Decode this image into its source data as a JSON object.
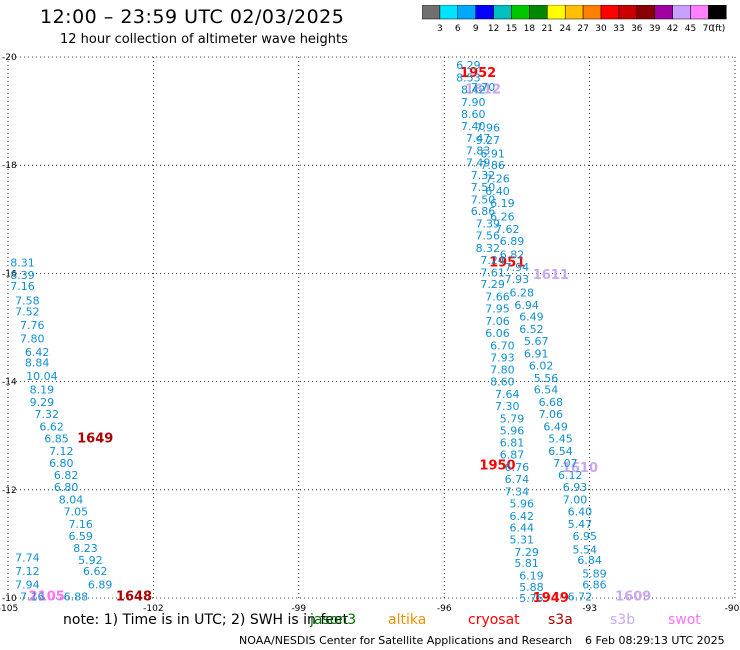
{
  "title": "12:00 – 23:59 UTC 02/03/2025",
  "subtitle": "12 hour collection of altimeter wave heights",
  "colorbar": {
    "unit": "(ft)",
    "labels": [
      "3",
      "6",
      "9",
      "12",
      "15",
      "18",
      "21",
      "24",
      "27",
      "30",
      "33",
      "36",
      "39",
      "42",
      "45",
      "70"
    ],
    "colors": [
      "#707070",
      "#00e5ff",
      "#00a8ff",
      "#0000ff",
      "#00c0c0",
      "#00c800",
      "#008800",
      "#ffff00",
      "#ffbf00",
      "#ff8000",
      "#ff0000",
      "#c80000",
      "#880000",
      "#a000a0",
      "#c8a0ff",
      "#ff80ff",
      "#000000"
    ]
  },
  "note": "note:  1) Time is in UTC;  2) SWH is in feet",
  "missions": [
    {
      "name": "jason3",
      "color": "#007000"
    },
    {
      "name": "altika",
      "color": "#f09000"
    },
    {
      "name": "cryosat",
      "color": "#ff0000"
    },
    {
      "name": "s3a",
      "color": "#b00000"
    },
    {
      "name": "s3b",
      "color": "#c8a8f0"
    },
    {
      "name": "swot",
      "color": "#ff70ff"
    }
  ],
  "credit": "NOAA/NESDIS Center for Satellite Applications and Research",
  "timestamp": "6 Feb 08:29:13 UTC 2025",
  "chart_data": {
    "type": "scatter",
    "xlim": [
      -105,
      -90
    ],
    "ylim": [
      -20,
      -10
    ],
    "xticks": [
      "-105",
      "-102",
      "-99",
      "-96",
      "-93",
      "-90"
    ],
    "yticks": [
      "-10",
      "-12",
      "-14",
      "-16",
      "-18",
      "-20"
    ],
    "grid": true,
    "series": [
      {
        "name": "jason3",
        "color": "#007000",
        "points": []
      },
      {
        "name": "altika",
        "color": "#f09000",
        "points": []
      },
      {
        "name": "cryosat",
        "color": "#ff0000",
        "points": [
          {
            "x": -93.8,
            "y": -10.0,
            "label": "1949"
          },
          {
            "x": -94.9,
            "y": -12.45,
            "label": "1950"
          },
          {
            "x": -94.7,
            "y": -16.2,
            "label": "1951"
          },
          {
            "x": -95.3,
            "y": -19.7,
            "label": "1952"
          }
        ]
      },
      {
        "name": "s3a",
        "color": "#b00000",
        "points": [
          {
            "x": -102.4,
            "y": -10.03,
            "label": "1648"
          },
          {
            "x": -103.2,
            "y": -12.95,
            "label": "1649"
          }
        ]
      },
      {
        "name": "s3b",
        "color": "#c8a8f0",
        "points": [
          {
            "x": -92.1,
            "y": -10.03,
            "label": "1609"
          },
          {
            "x": -93.2,
            "y": -12.4,
            "label": "1610"
          },
          {
            "x": -93.8,
            "y": -15.97,
            "label": "1611"
          },
          {
            "x": -95.2,
            "y": -19.4,
            "label": "1612"
          }
        ]
      },
      {
        "name": "swot",
        "color": "#ff70ff",
        "points": [
          {
            "x": -104.2,
            "y": -10.03,
            "label": "2105"
          }
        ]
      },
      {
        "name": "swh-west",
        "color": "#1090d0",
        "points": [
          {
            "x": -104.5,
            "y": -10.03,
            "label": "7.16"
          },
          {
            "x": -103.6,
            "y": -10.03,
            "label": "6.88"
          },
          {
            "x": -104.6,
            "y": -10.25,
            "label": "7.94"
          },
          {
            "x": -103.1,
            "y": -10.25,
            "label": "6.89"
          },
          {
            "x": -104.6,
            "y": -10.5,
            "label": "7.12"
          },
          {
            "x": -103.2,
            "y": -10.5,
            "label": "6.62"
          },
          {
            "x": -104.6,
            "y": -10.75,
            "label": "7.74"
          },
          {
            "x": -103.3,
            "y": -10.7,
            "label": "5.92"
          },
          {
            "x": -103.4,
            "y": -10.92,
            "label": "8.23"
          },
          {
            "x": -103.5,
            "y": -11.15,
            "label": "6.59"
          },
          {
            "x": -103.5,
            "y": -11.37,
            "label": "7.16"
          },
          {
            "x": -103.6,
            "y": -11.6,
            "label": "7.05"
          },
          {
            "x": -103.7,
            "y": -11.82,
            "label": "8.04"
          },
          {
            "x": -103.8,
            "y": -12.05,
            "label": "6.80"
          },
          {
            "x": -103.8,
            "y": -12.27,
            "label": "6.82"
          },
          {
            "x": -103.9,
            "y": -12.5,
            "label": "6.80"
          },
          {
            "x": -103.9,
            "y": -12.72,
            "label": "7.12"
          },
          {
            "x": -104.0,
            "y": -12.95,
            "label": "6.85"
          },
          {
            "x": -104.1,
            "y": -13.17,
            "label": "6.62"
          },
          {
            "x": -104.2,
            "y": -13.4,
            "label": "7.32"
          },
          {
            "x": -104.3,
            "y": -13.62,
            "label": "9.29"
          },
          {
            "x": -104.3,
            "y": -13.85,
            "label": "8.19"
          },
          {
            "x": -104.3,
            "y": -14.1,
            "label": "10.04"
          },
          {
            "x": -104.4,
            "y": -14.35,
            "label": "8.84"
          },
          {
            "x": -104.4,
            "y": -14.55,
            "label": "6.42"
          },
          {
            "x": -104.5,
            "y": -14.8,
            "label": "7.80"
          },
          {
            "x": -104.5,
            "y": -15.05,
            "label": "7.76"
          },
          {
            "x": -104.6,
            "y": -15.3,
            "label": "7.52"
          },
          {
            "x": -104.6,
            "y": -15.5,
            "label": "7.58"
          },
          {
            "x": -104.7,
            "y": -15.77,
            "label": "7.16"
          },
          {
            "x": -104.7,
            "y": -15.97,
            "label": "8.39"
          },
          {
            "x": -104.7,
            "y": -16.2,
            "label": "8.31"
          }
        ]
      },
      {
        "name": "swh-east-a",
        "color": "#1090d0",
        "points": [
          {
            "x": -94.2,
            "y": -10.0,
            "label": "5.75"
          },
          {
            "x": -94.2,
            "y": -10.2,
            "label": "5.88"
          },
          {
            "x": -94.2,
            "y": -10.42,
            "label": "6.19"
          },
          {
            "x": -94.3,
            "y": -10.65,
            "label": "5.81"
          },
          {
            "x": -94.3,
            "y": -10.85,
            "label": "7.29"
          },
          {
            "x": -94.4,
            "y": -11.08,
            "label": "5.31"
          },
          {
            "x": -94.4,
            "y": -11.3,
            "label": "6.44"
          },
          {
            "x": -94.4,
            "y": -11.52,
            "label": "6.42"
          },
          {
            "x": -94.4,
            "y": -11.75,
            "label": "5.96"
          },
          {
            "x": -94.5,
            "y": -11.97,
            "label": "7.34"
          },
          {
            "x": -94.5,
            "y": -12.2,
            "label": "6.74"
          },
          {
            "x": -94.5,
            "y": -12.42,
            "label": "6.76"
          },
          {
            "x": -94.6,
            "y": -12.65,
            "label": "6.87"
          },
          {
            "x": -94.6,
            "y": -12.87,
            "label": "6.81"
          },
          {
            "x": -94.6,
            "y": -13.1,
            "label": "5.96"
          },
          {
            "x": -94.6,
            "y": -13.32,
            "label": "5.79"
          },
          {
            "x": -94.7,
            "y": -13.55,
            "label": "7.30"
          },
          {
            "x": -94.7,
            "y": -13.77,
            "label": "7.64"
          },
          {
            "x": -94.8,
            "y": -14.0,
            "label": "8.60"
          },
          {
            "x": -94.8,
            "y": -14.22,
            "label": "7.80"
          },
          {
            "x": -94.8,
            "y": -14.45,
            "label": "7.93"
          },
          {
            "x": -94.8,
            "y": -14.67,
            "label": "6.70"
          },
          {
            "x": -94.9,
            "y": -14.9,
            "label": "6.06"
          },
          {
            "x": -94.9,
            "y": -15.12,
            "label": "7.06"
          },
          {
            "x": -94.9,
            "y": -15.35,
            "label": "7.95"
          },
          {
            "x": -94.9,
            "y": -15.57,
            "label": "7.66"
          },
          {
            "x": -95.0,
            "y": -15.8,
            "label": "7.29"
          },
          {
            "x": -95.0,
            "y": -16.02,
            "label": "7.61"
          },
          {
            "x": -95.0,
            "y": -16.25,
            "label": "7.24"
          },
          {
            "x": -95.1,
            "y": -16.47,
            "label": "8.32"
          },
          {
            "x": -95.1,
            "y": -16.7,
            "label": "7.56"
          },
          {
            "x": -95.1,
            "y": -16.92,
            "label": "7.39"
          },
          {
            "x": -95.2,
            "y": -17.15,
            "label": "6.86"
          },
          {
            "x": -95.2,
            "y": -17.37,
            "label": "7.50"
          },
          {
            "x": -95.2,
            "y": -17.6,
            "label": "7.50"
          },
          {
            "x": -95.2,
            "y": -17.82,
            "label": "7.32"
          },
          {
            "x": -95.3,
            "y": -18.05,
            "label": "7.49"
          },
          {
            "x": -95.3,
            "y": -18.27,
            "label": "7.83"
          },
          {
            "x": -95.3,
            "y": -18.5,
            "label": "7.47"
          },
          {
            "x": -95.4,
            "y": -18.72,
            "label": "7.40"
          },
          {
            "x": -95.4,
            "y": -18.95,
            "label": "8.60"
          },
          {
            "x": -95.4,
            "y": -19.17,
            "label": "7.90"
          },
          {
            "x": -95.4,
            "y": -19.4,
            "label": "8.42"
          },
          {
            "x": -95.5,
            "y": -19.62,
            "label": "8.53"
          },
          {
            "x": -95.5,
            "y": -19.85,
            "label": "6.29"
          }
        ]
      },
      {
        "name": "swh-east-b",
        "color": "#1090d0",
        "points": [
          {
            "x": -93.2,
            "y": -10.03,
            "label": "6.72"
          },
          {
            "x": -92.9,
            "y": -10.25,
            "label": "6.86"
          },
          {
            "x": -92.9,
            "y": -10.45,
            "label": "5.89"
          },
          {
            "x": -93.0,
            "y": -10.7,
            "label": "6.84"
          },
          {
            "x": -93.1,
            "y": -10.9,
            "label": "5.54"
          },
          {
            "x": -93.1,
            "y": -11.15,
            "label": "6.95"
          },
          {
            "x": -93.2,
            "y": -11.37,
            "label": "5.47"
          },
          {
            "x": -93.2,
            "y": -11.6,
            "label": "6.40"
          },
          {
            "x": -93.3,
            "y": -11.82,
            "label": "7.00"
          },
          {
            "x": -93.3,
            "y": -12.05,
            "label": "6.93"
          },
          {
            "x": -93.4,
            "y": -12.27,
            "label": "6.12"
          },
          {
            "x": -93.5,
            "y": -12.5,
            "label": "7.07"
          },
          {
            "x": -93.6,
            "y": -12.72,
            "label": "6.54"
          },
          {
            "x": -93.6,
            "y": -12.95,
            "label": "5.45"
          },
          {
            "x": -93.7,
            "y": -13.17,
            "label": "6.49"
          },
          {
            "x": -93.8,
            "y": -13.4,
            "label": "7.06"
          },
          {
            "x": -93.8,
            "y": -13.62,
            "label": "6.68"
          },
          {
            "x": -93.9,
            "y": -13.85,
            "label": "6.54"
          },
          {
            "x": -93.9,
            "y": -14.07,
            "label": "5.56"
          },
          {
            "x": -94.0,
            "y": -14.3,
            "label": "6.02"
          },
          {
            "x": -94.1,
            "y": -14.52,
            "label": "6.91"
          },
          {
            "x": -94.1,
            "y": -14.75,
            "label": "5.67"
          },
          {
            "x": -94.2,
            "y": -14.97,
            "label": "6.52"
          },
          {
            "x": -94.2,
            "y": -15.2,
            "label": "6.49"
          },
          {
            "x": -94.3,
            "y": -15.42,
            "label": "6.94"
          },
          {
            "x": -94.4,
            "y": -15.65,
            "label": "6.28"
          },
          {
            "x": -94.5,
            "y": -15.9,
            "label": "7.93"
          },
          {
            "x": -94.5,
            "y": -16.12,
            "label": "7.94"
          },
          {
            "x": -94.6,
            "y": -16.35,
            "label": "6.82"
          },
          {
            "x": -94.6,
            "y": -16.6,
            "label": "6.89"
          },
          {
            "x": -94.7,
            "y": -16.82,
            "label": "7.62"
          },
          {
            "x": -94.8,
            "y": -17.05,
            "label": "6.26"
          },
          {
            "x": -94.8,
            "y": -17.3,
            "label": "6.19"
          },
          {
            "x": -94.9,
            "y": -17.52,
            "label": "6.40"
          },
          {
            "x": -94.9,
            "y": -17.75,
            "label": "7.26"
          },
          {
            "x": -95.0,
            "y": -18.0,
            "label": "7.86"
          },
          {
            "x": -95.0,
            "y": -18.22,
            "label": "6.91"
          },
          {
            "x": -95.1,
            "y": -18.47,
            "label": "9.27"
          },
          {
            "x": -95.1,
            "y": -18.7,
            "label": "7.96"
          },
          {
            "x": -95.2,
            "y": -19.45,
            "label": "7.70"
          }
        ]
      }
    ]
  }
}
